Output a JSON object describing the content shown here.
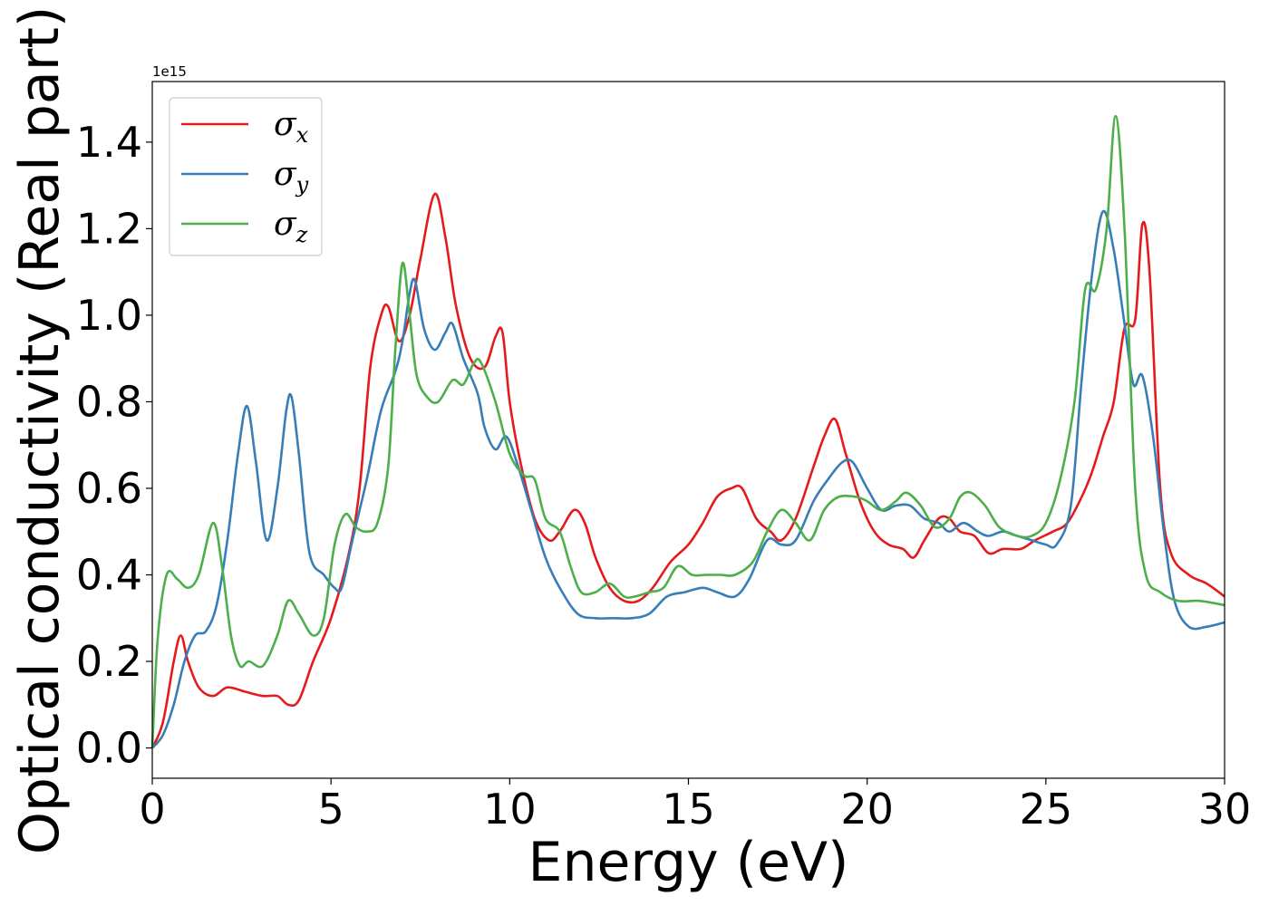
{
  "chart_data": {
    "type": "line",
    "title": "",
    "xlabel": "Energy (eV)",
    "ylabel": "Optical conductivity (Real part)",
    "y_offset_label": "1e15",
    "xlim": [
      0,
      30
    ],
    "ylim": [
      -0.07,
      1.54
    ],
    "xticks": [
      0,
      5,
      10,
      15,
      20,
      25,
      30
    ],
    "yticks": [
      0.0,
      0.2,
      0.4,
      0.6,
      0.8,
      1.0,
      1.2,
      1.4
    ],
    "ytick_labels": [
      "0.0",
      "0.2",
      "0.4",
      "0.6",
      "0.8",
      "1.0",
      "1.2",
      "1.4"
    ],
    "grid": false,
    "legend_position": "upper-left",
    "series": [
      {
        "name": "σx",
        "symbol": "σ",
        "subscript": "x",
        "color": "#e41a1c",
        "points": [
          [
            0,
            0
          ],
          [
            0.3,
            0.06
          ],
          [
            0.6,
            0.2
          ],
          [
            0.8,
            0.26
          ],
          [
            1.0,
            0.2
          ],
          [
            1.3,
            0.14
          ],
          [
            1.7,
            0.12
          ],
          [
            2.1,
            0.14
          ],
          [
            2.6,
            0.13
          ],
          [
            3.1,
            0.12
          ],
          [
            3.5,
            0.12
          ],
          [
            3.8,
            0.1
          ],
          [
            4.1,
            0.11
          ],
          [
            4.5,
            0.2
          ],
          [
            5.0,
            0.3
          ],
          [
            5.5,
            0.45
          ],
          [
            5.8,
            0.6
          ],
          [
            6.1,
            0.88
          ],
          [
            6.4,
            1.0
          ],
          [
            6.6,
            1.02
          ],
          [
            6.9,
            0.94
          ],
          [
            7.2,
            1.0
          ],
          [
            7.5,
            1.13
          ],
          [
            7.9,
            1.28
          ],
          [
            8.2,
            1.18
          ],
          [
            8.5,
            1.02
          ],
          [
            8.9,
            0.9
          ],
          [
            9.3,
            0.88
          ],
          [
            9.6,
            0.95
          ],
          [
            9.8,
            0.96
          ],
          [
            10.0,
            0.8
          ],
          [
            10.3,
            0.66
          ],
          [
            10.7,
            0.53
          ],
          [
            11.1,
            0.48
          ],
          [
            11.4,
            0.5
          ],
          [
            11.8,
            0.55
          ],
          [
            12.1,
            0.52
          ],
          [
            12.4,
            0.44
          ],
          [
            12.8,
            0.37
          ],
          [
            13.2,
            0.34
          ],
          [
            13.6,
            0.34
          ],
          [
            14.0,
            0.37
          ],
          [
            14.5,
            0.43
          ],
          [
            15.0,
            0.47
          ],
          [
            15.4,
            0.52
          ],
          [
            15.8,
            0.58
          ],
          [
            16.2,
            0.6
          ],
          [
            16.5,
            0.6
          ],
          [
            16.9,
            0.53
          ],
          [
            17.3,
            0.5
          ],
          [
            17.6,
            0.48
          ],
          [
            18.0,
            0.53
          ],
          [
            18.5,
            0.65
          ],
          [
            18.8,
            0.72
          ],
          [
            19.1,
            0.76
          ],
          [
            19.4,
            0.68
          ],
          [
            19.8,
            0.57
          ],
          [
            20.2,
            0.5
          ],
          [
            20.6,
            0.47
          ],
          [
            21.0,
            0.46
          ],
          [
            21.3,
            0.44
          ],
          [
            21.6,
            0.48
          ],
          [
            22.0,
            0.53
          ],
          [
            22.3,
            0.53
          ],
          [
            22.6,
            0.5
          ],
          [
            23.0,
            0.49
          ],
          [
            23.4,
            0.45
          ],
          [
            23.8,
            0.46
          ],
          [
            24.3,
            0.46
          ],
          [
            24.7,
            0.48
          ],
          [
            25.2,
            0.5
          ],
          [
            25.6,
            0.52
          ],
          [
            26.0,
            0.58
          ],
          [
            26.3,
            0.64
          ],
          [
            26.6,
            0.72
          ],
          [
            26.9,
            0.8
          ],
          [
            27.2,
            0.97
          ],
          [
            27.5,
            0.99
          ],
          [
            27.7,
            1.21
          ],
          [
            27.9,
            1.1
          ],
          [
            28.2,
            0.6
          ],
          [
            28.5,
            0.45
          ],
          [
            29.0,
            0.4
          ],
          [
            29.5,
            0.38
          ],
          [
            30.0,
            0.35
          ]
        ]
      },
      {
        "name": "σy",
        "symbol": "σ",
        "subscript": "y",
        "color": "#377eb8",
        "points": [
          [
            0,
            0
          ],
          [
            0.3,
            0.03
          ],
          [
            0.6,
            0.1
          ],
          [
            0.9,
            0.2
          ],
          [
            1.2,
            0.26
          ],
          [
            1.5,
            0.27
          ],
          [
            1.8,
            0.33
          ],
          [
            2.1,
            0.48
          ],
          [
            2.4,
            0.68
          ],
          [
            2.65,
            0.79
          ],
          [
            2.9,
            0.66
          ],
          [
            3.2,
            0.48
          ],
          [
            3.5,
            0.6
          ],
          [
            3.75,
            0.78
          ],
          [
            3.9,
            0.81
          ],
          [
            4.1,
            0.68
          ],
          [
            4.4,
            0.45
          ],
          [
            4.8,
            0.4
          ],
          [
            5.1,
            0.37
          ],
          [
            5.3,
            0.37
          ],
          [
            5.6,
            0.48
          ],
          [
            6.0,
            0.62
          ],
          [
            6.4,
            0.78
          ],
          [
            6.8,
            0.87
          ],
          [
            7.0,
            0.94
          ],
          [
            7.2,
            1.05
          ],
          [
            7.35,
            1.08
          ],
          [
            7.6,
            0.97
          ],
          [
            7.9,
            0.92
          ],
          [
            8.2,
            0.96
          ],
          [
            8.4,
            0.98
          ],
          [
            8.7,
            0.9
          ],
          [
            9.1,
            0.82
          ],
          [
            9.3,
            0.74
          ],
          [
            9.6,
            0.69
          ],
          [
            9.9,
            0.72
          ],
          [
            10.2,
            0.66
          ],
          [
            10.6,
            0.55
          ],
          [
            11.0,
            0.44
          ],
          [
            11.4,
            0.37
          ],
          [
            11.9,
            0.31
          ],
          [
            12.4,
            0.3
          ],
          [
            12.9,
            0.3
          ],
          [
            13.4,
            0.3
          ],
          [
            13.9,
            0.31
          ],
          [
            14.4,
            0.35
          ],
          [
            14.9,
            0.36
          ],
          [
            15.4,
            0.37
          ],
          [
            15.8,
            0.36
          ],
          [
            16.3,
            0.35
          ],
          [
            16.7,
            0.39
          ],
          [
            17.2,
            0.48
          ],
          [
            17.6,
            0.47
          ],
          [
            18.0,
            0.48
          ],
          [
            18.5,
            0.57
          ],
          [
            18.9,
            0.62
          ],
          [
            19.3,
            0.66
          ],
          [
            19.6,
            0.66
          ],
          [
            20.0,
            0.6
          ],
          [
            20.4,
            0.55
          ],
          [
            20.8,
            0.56
          ],
          [
            21.2,
            0.56
          ],
          [
            21.6,
            0.53
          ],
          [
            22.0,
            0.52
          ],
          [
            22.3,
            0.5
          ],
          [
            22.7,
            0.52
          ],
          [
            23.1,
            0.5
          ],
          [
            23.4,
            0.49
          ],
          [
            23.8,
            0.5
          ],
          [
            24.2,
            0.49
          ],
          [
            24.6,
            0.48
          ],
          [
            25.0,
            0.47
          ],
          [
            25.3,
            0.47
          ],
          [
            25.7,
            0.56
          ],
          [
            26.0,
            0.85
          ],
          [
            26.3,
            1.1
          ],
          [
            26.6,
            1.24
          ],
          [
            26.9,
            1.15
          ],
          [
            27.2,
            0.98
          ],
          [
            27.45,
            0.84
          ],
          [
            27.7,
            0.86
          ],
          [
            28.0,
            0.72
          ],
          [
            28.3,
            0.5
          ],
          [
            28.6,
            0.34
          ],
          [
            29.0,
            0.28
          ],
          [
            29.5,
            0.28
          ],
          [
            30.0,
            0.29
          ]
        ]
      },
      {
        "name": "σz",
        "symbol": "σ",
        "subscript": "z",
        "color": "#4daf4a",
        "points": [
          [
            0,
            0
          ],
          [
            0.15,
            0.25
          ],
          [
            0.4,
            0.4
          ],
          [
            0.7,
            0.39
          ],
          [
            1.0,
            0.37
          ],
          [
            1.3,
            0.4
          ],
          [
            1.7,
            0.52
          ],
          [
            1.95,
            0.42
          ],
          [
            2.2,
            0.26
          ],
          [
            2.45,
            0.19
          ],
          [
            2.7,
            0.2
          ],
          [
            3.1,
            0.19
          ],
          [
            3.5,
            0.26
          ],
          [
            3.8,
            0.34
          ],
          [
            4.1,
            0.31
          ],
          [
            4.5,
            0.26
          ],
          [
            4.8,
            0.3
          ],
          [
            5.1,
            0.47
          ],
          [
            5.4,
            0.54
          ],
          [
            5.7,
            0.51
          ],
          [
            6.0,
            0.5
          ],
          [
            6.3,
            0.52
          ],
          [
            6.6,
            0.65
          ],
          [
            6.8,
            0.92
          ],
          [
            7.0,
            1.12
          ],
          [
            7.2,
            1.0
          ],
          [
            7.4,
            0.86
          ],
          [
            7.7,
            0.81
          ],
          [
            8.0,
            0.8
          ],
          [
            8.4,
            0.85
          ],
          [
            8.7,
            0.84
          ],
          [
            9.0,
            0.89
          ],
          [
            9.2,
            0.89
          ],
          [
            9.6,
            0.8
          ],
          [
            10.0,
            0.68
          ],
          [
            10.4,
            0.63
          ],
          [
            10.7,
            0.62
          ],
          [
            11.0,
            0.53
          ],
          [
            11.4,
            0.5
          ],
          [
            11.7,
            0.42
          ],
          [
            12.0,
            0.36
          ],
          [
            12.4,
            0.36
          ],
          [
            12.8,
            0.38
          ],
          [
            13.2,
            0.35
          ],
          [
            13.5,
            0.35
          ],
          [
            13.9,
            0.36
          ],
          [
            14.3,
            0.37
          ],
          [
            14.7,
            0.42
          ],
          [
            15.1,
            0.4
          ],
          [
            15.5,
            0.4
          ],
          [
            15.9,
            0.4
          ],
          [
            16.3,
            0.4
          ],
          [
            16.8,
            0.43
          ],
          [
            17.2,
            0.5
          ],
          [
            17.6,
            0.55
          ],
          [
            18.0,
            0.52
          ],
          [
            18.4,
            0.48
          ],
          [
            18.8,
            0.55
          ],
          [
            19.2,
            0.58
          ],
          [
            19.7,
            0.58
          ],
          [
            20.0,
            0.57
          ],
          [
            20.4,
            0.55
          ],
          [
            20.8,
            0.57
          ],
          [
            21.1,
            0.59
          ],
          [
            21.5,
            0.56
          ],
          [
            21.9,
            0.51
          ],
          [
            22.3,
            0.53
          ],
          [
            22.6,
            0.58
          ],
          [
            22.9,
            0.59
          ],
          [
            23.3,
            0.56
          ],
          [
            23.7,
            0.51
          ],
          [
            24.2,
            0.49
          ],
          [
            24.6,
            0.49
          ],
          [
            25.0,
            0.52
          ],
          [
            25.4,
            0.62
          ],
          [
            25.8,
            0.8
          ],
          [
            26.1,
            1.06
          ],
          [
            26.4,
            1.06
          ],
          [
            26.7,
            1.2
          ],
          [
            26.95,
            1.46
          ],
          [
            27.2,
            1.2
          ],
          [
            27.5,
            0.6
          ],
          [
            27.8,
            0.4
          ],
          [
            28.2,
            0.36
          ],
          [
            28.7,
            0.34
          ],
          [
            29.3,
            0.34
          ],
          [
            30.0,
            0.33
          ]
        ]
      }
    ]
  }
}
